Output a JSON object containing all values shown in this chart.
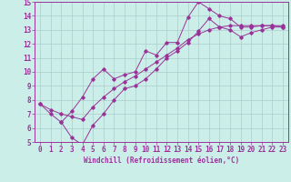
{
  "bg_color": "#cceee8",
  "line_color": "#993399",
  "grid_color": "#aacccc",
  "xlabel": "Windchill (Refroidissement éolien,°C)",
  "xlim": [
    -0.5,
    23.5
  ],
  "ylim": [
    5,
    15
  ],
  "yticks": [
    5,
    6,
    7,
    8,
    9,
    10,
    11,
    12,
    13,
    14,
    15
  ],
  "xticks": [
    0,
    1,
    2,
    3,
    4,
    5,
    6,
    7,
    8,
    9,
    10,
    11,
    12,
    13,
    14,
    15,
    16,
    17,
    18,
    19,
    20,
    21,
    22,
    23
  ],
  "line1_x": [
    0,
    1,
    2,
    3,
    4,
    5,
    6,
    7,
    8,
    9,
    10,
    11,
    12,
    13,
    14,
    15,
    16,
    17,
    18,
    19,
    20,
    21,
    22,
    23
  ],
  "line1_y": [
    7.7,
    7.0,
    6.4,
    7.2,
    8.2,
    9.5,
    10.2,
    9.5,
    9.8,
    10.0,
    11.5,
    11.2,
    12.1,
    12.1,
    13.9,
    15.0,
    14.5,
    14.0,
    13.8,
    13.2,
    13.2,
    13.3,
    13.3,
    13.2
  ],
  "line2_x": [
    0,
    1,
    2,
    3,
    4,
    5,
    6,
    7,
    8,
    9,
    10,
    11,
    12,
    13,
    14,
    15,
    16,
    17,
    18,
    19,
    20,
    21,
    22,
    23
  ],
  "line2_y": [
    7.7,
    7.3,
    7.0,
    6.8,
    6.6,
    7.5,
    8.2,
    8.8,
    9.3,
    9.7,
    10.2,
    10.7,
    11.2,
    11.7,
    12.3,
    12.7,
    13.0,
    13.2,
    13.3,
    13.3,
    13.3,
    13.3,
    13.3,
    13.3
  ],
  "line3_x": [
    2,
    3,
    4,
    5,
    6,
    7,
    8,
    9,
    10,
    11,
    12,
    13,
    14,
    15,
    16,
    17,
    18,
    19,
    20,
    21,
    22,
    23
  ],
  "line3_y": [
    6.4,
    5.3,
    4.8,
    6.2,
    7.0,
    8.0,
    8.8,
    9.0,
    9.5,
    10.2,
    11.0,
    11.5,
    12.1,
    12.9,
    13.8,
    13.2,
    13.0,
    12.5,
    12.8,
    13.0,
    13.2,
    13.2
  ],
  "tick_fontsize": 5.5,
  "xlabel_fontsize": 5.5
}
